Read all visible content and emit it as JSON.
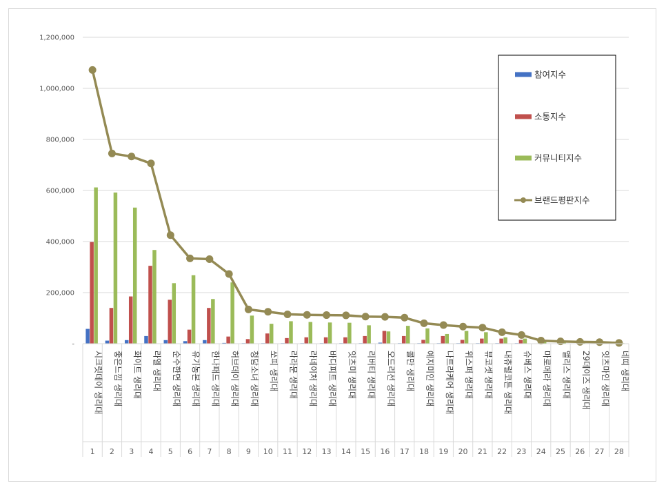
{
  "chart_data": {
    "type": "bar",
    "title": "",
    "xlabel": "",
    "ylabel": "",
    "ylim": [
      0,
      1200000
    ],
    "yticks": [
      0,
      200000,
      400000,
      600000,
      800000,
      1000000,
      1200000
    ],
    "ytick_labels": [
      "-",
      "200,000",
      "400,000",
      "600,000",
      "800,000",
      "1,000,000",
      "1,200,000"
    ],
    "grid": true,
    "legend_position": "top-right",
    "categories": [
      "시크릿데이 생리대",
      "좋은느낌 생리대",
      "화이트 생리대",
      "라엘 생리대",
      "순수한면 생리대",
      "유기농본 생리대",
      "한나패드 생리대",
      "허브데이 생리대",
      "청담소녀 생리대",
      "쏘피 생리대",
      "라라문 생리대",
      "라네이처 생리대",
      "바디피트 생리대",
      "잇츠미 생리대",
      "리버티 생리대",
      "오드리선 생리대",
      "콜만 생리대",
      "예지미인 생리대",
      "나트라케어 생리대",
      "위스퍼 생리대",
      "뷰코셋 생리대",
      "내츄럴코튼 생리대",
      "슈베스 생리대",
      "마로메라 생리대",
      "앨리스 생리대",
      "29데이즈 생리대",
      "잇츠마인 생리대",
      "네띠 생리대"
    ],
    "ranks": [
      "1",
      "2",
      "3",
      "4",
      "5",
      "6",
      "7",
      "8",
      "9",
      "10",
      "11",
      "12",
      "13",
      "14",
      "15",
      "16",
      "17",
      "18",
      "19",
      "20",
      "21",
      "22",
      "23",
      "24",
      "25",
      "26",
      "27",
      "28"
    ],
    "series": [
      {
        "name": "참여지수",
        "type": "bar",
        "color": "#4472c4",
        "values": [
          58000,
          12000,
          14000,
          30000,
          14000,
          10000,
          14000,
          3000,
          2000,
          2000,
          2000,
          2000,
          2000,
          2000,
          2000,
          4000,
          2000,
          2000,
          2000,
          2000,
          2000,
          2000,
          2000,
          1000,
          1000,
          1000,
          1000,
          1000
        ]
      },
      {
        "name": "소통지수",
        "type": "bar",
        "color": "#c0504d",
        "values": [
          398000,
          140000,
          185000,
          305000,
          172000,
          55000,
          140000,
          28000,
          18000,
          40000,
          22000,
          25000,
          25000,
          25000,
          30000,
          50000,
          30000,
          15000,
          30000,
          15000,
          20000,
          20000,
          15000,
          3000,
          3000,
          3000,
          3000,
          3000
        ]
      },
      {
        "name": "커뮤니티지수",
        "type": "bar",
        "color": "#9bbb59",
        "values": [
          612000,
          592000,
          533000,
          367000,
          237000,
          268000,
          175000,
          240000,
          110000,
          78000,
          88000,
          85000,
          83000,
          82000,
          72000,
          48000,
          70000,
          60000,
          38000,
          50000,
          45000,
          25000,
          20000,
          8000,
          5000,
          3000,
          3000,
          2000
        ]
      },
      {
        "name": "브랜드평판지수",
        "type": "line",
        "color": "#948a54",
        "values": [
          1072000,
          745000,
          733000,
          706000,
          425000,
          334000,
          331000,
          273000,
          134000,
          125000,
          115000,
          113000,
          112000,
          111000,
          106000,
          105000,
          102000,
          80000,
          73000,
          67000,
          63000,
          45000,
          34000,
          12000,
          9000,
          7000,
          6000,
          3000
        ]
      }
    ]
  }
}
